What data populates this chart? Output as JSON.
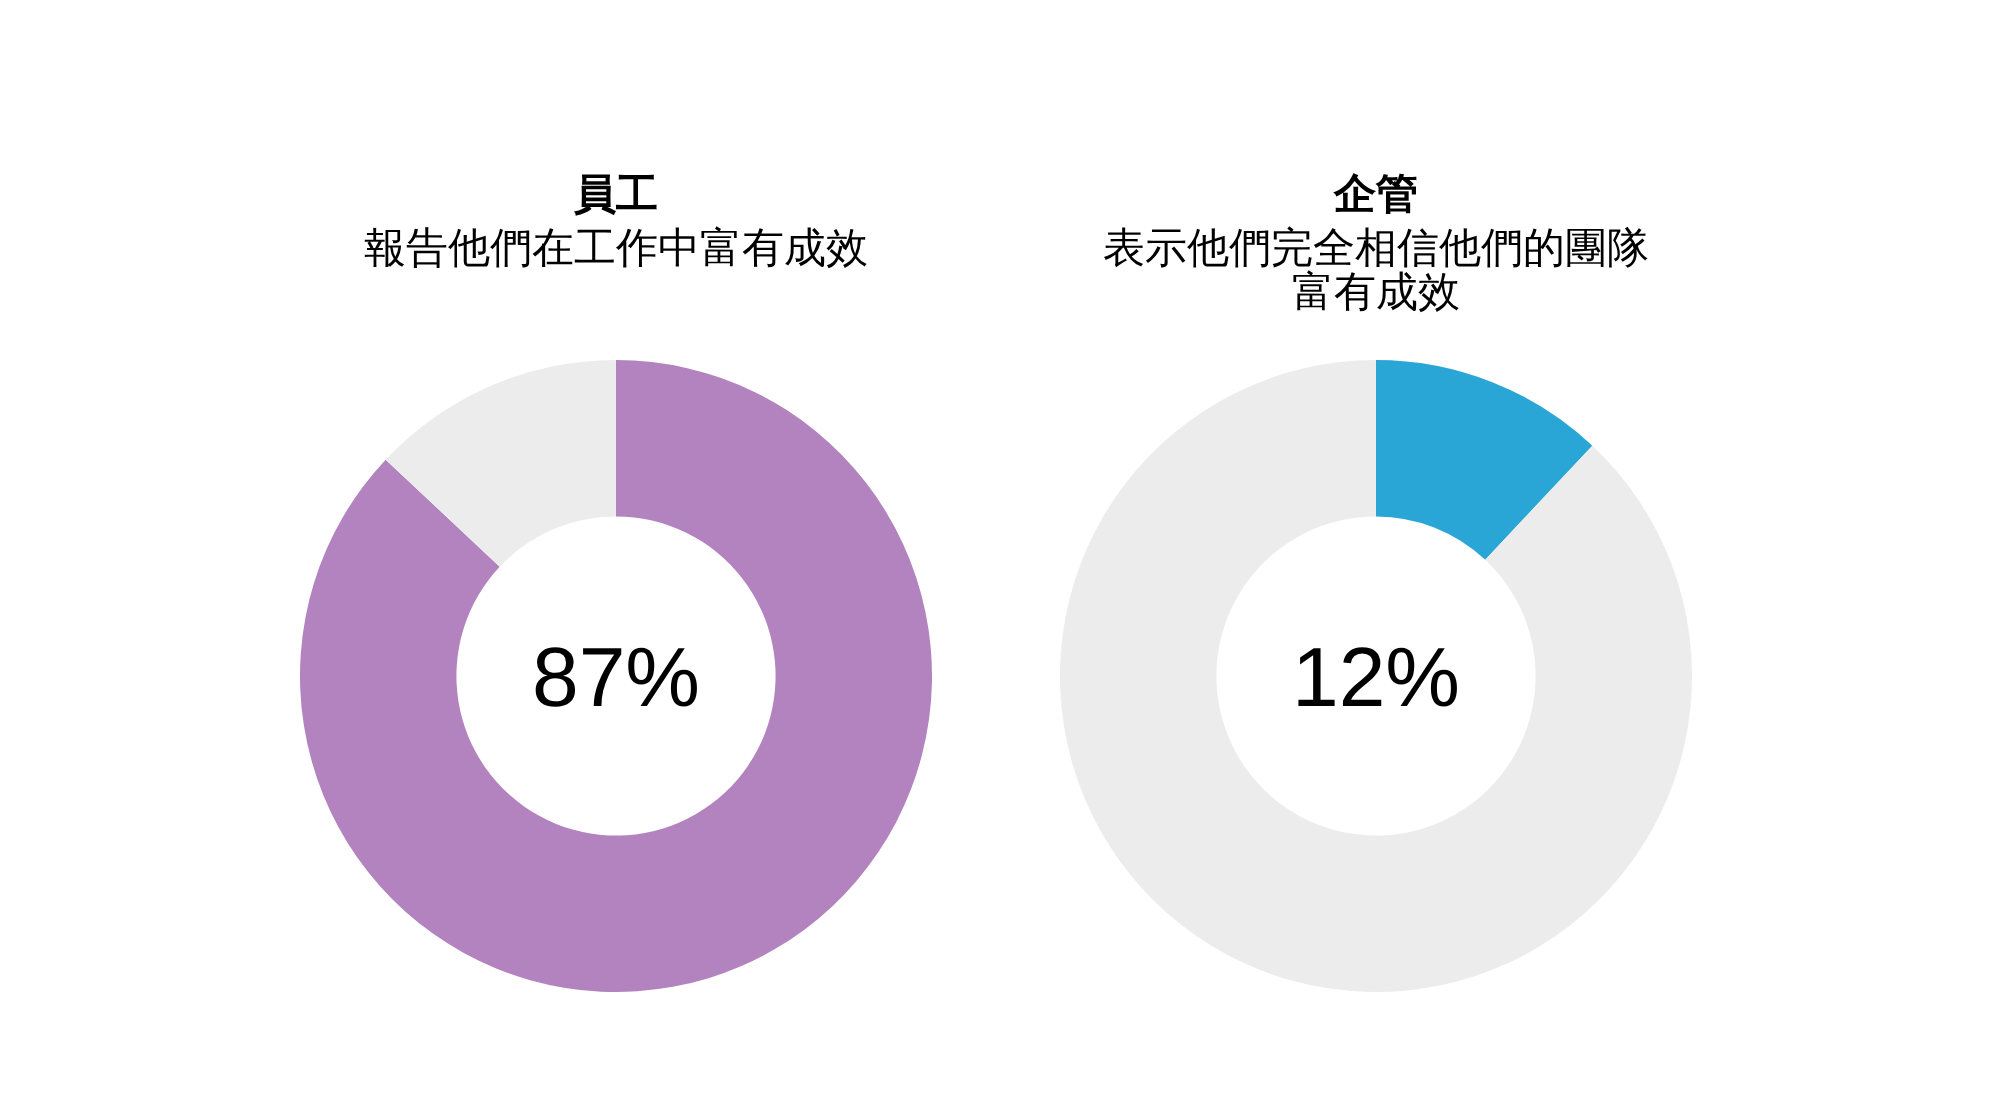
{
  "chart_data": [
    {
      "type": "donut",
      "title": "員工",
      "subtitle": "報告他們在工作中富有成效",
      "categories": [
        null,
        null
      ],
      "values": [
        87,
        13
      ],
      "colors": [
        "#b283be",
        "#ececec"
      ],
      "annotations": [
        "87%"
      ]
    },
    {
      "type": "donut",
      "title": "企管",
      "subtitle": "表示他們完全相信他們的團隊富有成效",
      "categories": [
        null,
        null
      ],
      "values": [
        12,
        88
      ],
      "colors": [
        "#2aa6d6",
        "#ececec"
      ],
      "annotations": [
        "12%"
      ]
    }
  ]
}
